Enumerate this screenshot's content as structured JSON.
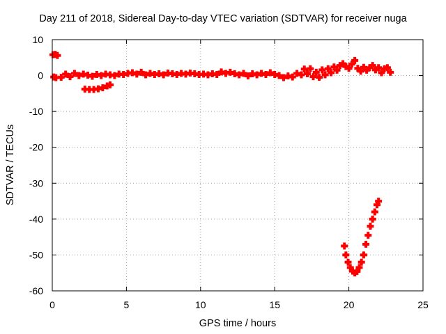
{
  "chart_data": {
    "type": "scatter",
    "title": "Day 211 of 2018, Sidereal Day-to-day VTEC variation (SDTVAR) for receiver nuga",
    "xlabel": "GPS time / hours",
    "ylabel": "SDTVAR / TECUs",
    "xlim": [
      0,
      25
    ],
    "ylim": [
      -60,
      10
    ],
    "xticks": [
      "0",
      "5",
      "10",
      "15",
      "20",
      "25"
    ],
    "yticks": [
      "10",
      "0",
      "-10",
      "-20",
      "-30",
      "-40",
      "-50",
      "-60"
    ],
    "grid": true,
    "marker": "plus",
    "color": "#ff0000",
    "series": [
      {
        "points": [
          [
            0.05,
            5.8
          ],
          [
            0.2,
            5.9
          ],
          [
            0.35,
            5.6
          ],
          [
            0.1,
            -0.4
          ],
          [
            0.25,
            -0.6
          ],
          [
            0.6,
            -0.5
          ],
          [
            0.9,
            0.4
          ],
          [
            1.2,
            -0.3
          ],
          [
            1.5,
            0.6
          ],
          [
            1.8,
            0.0
          ],
          [
            2.1,
            0.4
          ],
          [
            2.4,
            0.1
          ],
          [
            2.7,
            -0.2
          ],
          [
            3.0,
            0.3
          ],
          [
            3.3,
            0.0
          ],
          [
            3.6,
            0.4
          ],
          [
            3.9,
            0.2
          ],
          [
            4.2,
            0.0
          ],
          [
            4.5,
            0.4
          ],
          [
            4.8,
            0.3
          ],
          [
            5.1,
            0.6
          ],
          [
            5.4,
            0.8
          ],
          [
            5.7,
            0.4
          ],
          [
            6.0,
            0.9
          ],
          [
            6.3,
            0.2
          ],
          [
            6.6,
            0.6
          ],
          [
            6.9,
            0.3
          ],
          [
            7.2,
            0.5
          ],
          [
            7.5,
            0.2
          ],
          [
            7.8,
            0.7
          ],
          [
            8.1,
            0.5
          ],
          [
            8.4,
            0.3
          ],
          [
            8.7,
            0.6
          ],
          [
            9.0,
            0.4
          ],
          [
            9.3,
            0.7
          ],
          [
            9.6,
            0.5
          ],
          [
            9.9,
            0.3
          ],
          [
            10.2,
            0.4
          ],
          [
            10.5,
            0.2
          ],
          [
            10.8,
            0.5
          ],
          [
            11.1,
            0.3
          ],
          [
            11.4,
            1.0
          ],
          [
            11.7,
            0.6
          ],
          [
            12.0,
            0.9
          ],
          [
            12.3,
            0.5
          ],
          [
            12.6,
            0.2
          ],
          [
            12.9,
            0.6
          ],
          [
            13.2,
            -0.1
          ],
          [
            13.5,
            0.5
          ],
          [
            13.8,
            0.2
          ],
          [
            14.1,
            0.6
          ],
          [
            14.4,
            0.3
          ],
          [
            14.7,
            0.8
          ],
          [
            15.0,
            0.3
          ],
          [
            15.3,
            0.0
          ],
          [
            15.6,
            -0.6
          ],
          [
            15.9,
            -0.1
          ],
          [
            16.2,
            -0.4
          ],
          [
            16.5,
            0.6
          ],
          [
            16.8,
            0.2
          ],
          [
            2.2,
            -3.8
          ],
          [
            2.5,
            -3.9
          ],
          [
            2.8,
            -3.9
          ],
          [
            3.1,
            -3.7
          ],
          [
            3.4,
            -3.4
          ],
          [
            3.7,
            -2.9
          ],
          [
            3.9,
            -2.6
          ],
          [
            17.0,
            1.8
          ],
          [
            17.2,
            0.5
          ],
          [
            17.4,
            1.9
          ],
          [
            17.6,
            -0.3
          ],
          [
            17.8,
            0.9
          ],
          [
            18.0,
            -0.5
          ],
          [
            18.2,
            1.6
          ],
          [
            18.4,
            0.2
          ],
          [
            18.6,
            1.9
          ],
          [
            18.8,
            0.8
          ],
          [
            19.0,
            2.4
          ],
          [
            19.2,
            1.5
          ],
          [
            19.4,
            2.8
          ],
          [
            19.6,
            3.3
          ],
          [
            19.8,
            2.5
          ],
          [
            20.0,
            2.0
          ],
          [
            20.2,
            3.2
          ],
          [
            20.4,
            4.2
          ],
          [
            20.6,
            2.0
          ],
          [
            20.8,
            1.2
          ],
          [
            21.0,
            2.3
          ],
          [
            21.2,
            1.5
          ],
          [
            21.4,
            2.2
          ],
          [
            21.6,
            2.8
          ],
          [
            21.8,
            1.6
          ],
          [
            22.0,
            2.2
          ],
          [
            22.2,
            0.8
          ],
          [
            22.4,
            1.9
          ],
          [
            22.6,
            2.2
          ],
          [
            22.8,
            0.9
          ],
          [
            19.7,
            -47.5
          ],
          [
            19.8,
            -50.0
          ],
          [
            19.95,
            -52.0
          ],
          [
            20.1,
            -53.5
          ],
          [
            20.25,
            -54.5
          ],
          [
            20.4,
            -55.0
          ],
          [
            20.55,
            -54.6
          ],
          [
            20.7,
            -53.5
          ],
          [
            20.85,
            -52.0
          ],
          [
            21.0,
            -50.0
          ],
          [
            21.15,
            -47.0
          ],
          [
            21.3,
            -44.5
          ],
          [
            21.45,
            -42.0
          ],
          [
            21.6,
            -40.0
          ],
          [
            21.75,
            -38.0
          ],
          [
            21.9,
            -36.0
          ],
          [
            22.0,
            -35.0
          ]
        ]
      }
    ]
  }
}
